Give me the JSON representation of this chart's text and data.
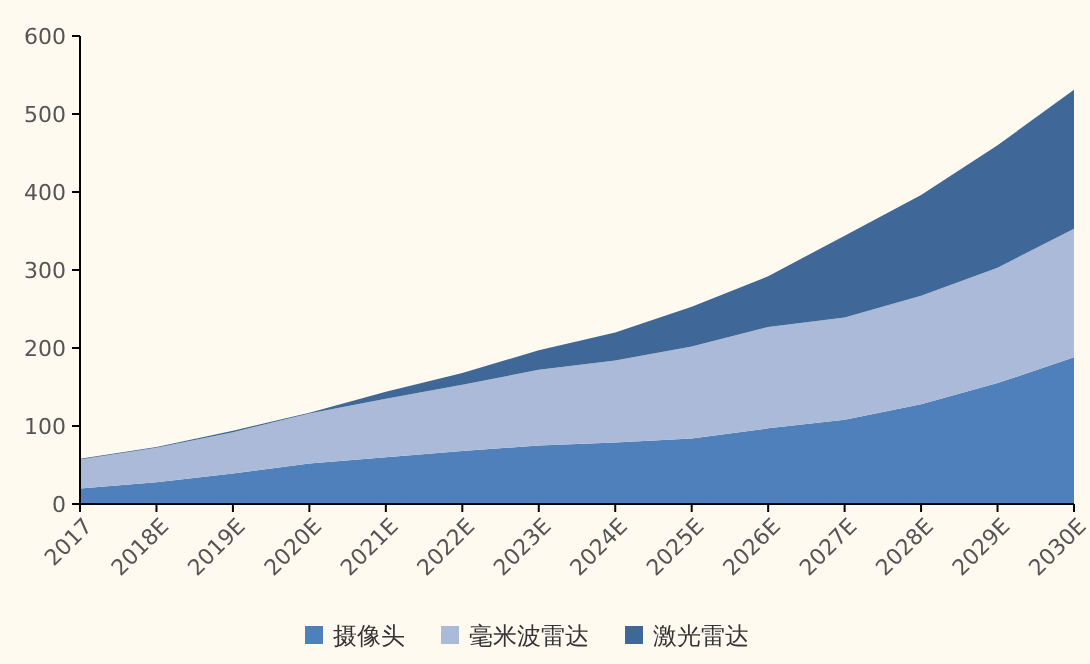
{
  "chart_data": {
    "type": "area",
    "stacked": true,
    "categories": [
      "2017",
      "2018E",
      "2019E",
      "2020E",
      "2021E",
      "2022E",
      "2023E",
      "2024E",
      "2025E",
      "2026E",
      "2027E",
      "2028E",
      "2029E",
      "2030E"
    ],
    "series": [
      {
        "name": "摄像头",
        "color": "#4f80bc",
        "values": [
          20,
          28,
          39,
          52,
          60,
          68,
          75,
          79,
          84,
          97,
          108,
          128,
          155,
          188
        ]
      },
      {
        "name": "毫米波雷达",
        "color": "#aabad8",
        "values": [
          37,
          44,
          53,
          64,
          75,
          85,
          97,
          105,
          118,
          130,
          131,
          139,
          148,
          165
        ]
      },
      {
        "name": "激光雷达",
        "color": "#3f6797",
        "values": [
          1,
          1,
          2,
          1,
          9,
          15,
          25,
          36,
          51,
          65,
          105,
          129,
          157,
          178
        ]
      }
    ],
    "ylim": [
      0,
      600
    ],
    "yticks": [
      0,
      100,
      200,
      300,
      400,
      500,
      600
    ],
    "grid": false,
    "legend": "bottom"
  }
}
